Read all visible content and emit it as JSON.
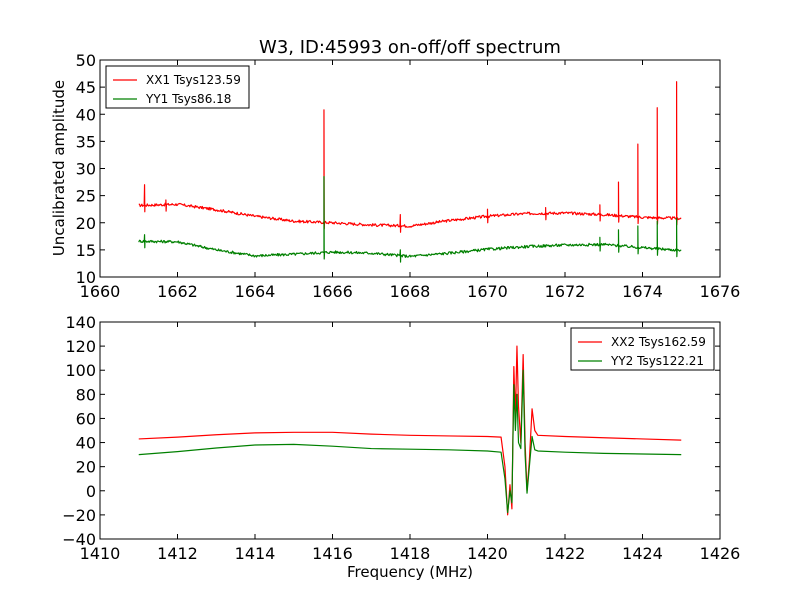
{
  "colors": {
    "series_red": "#ff0000",
    "series_green": "#008000"
  },
  "chart_data": [
    {
      "type": "line",
      "title": "W3, ID:45993 on-off/off spectrum",
      "xlabel": "",
      "ylabel": "Uncalibrated amplitude",
      "xlim": [
        1660,
        1676
      ],
      "ylim": [
        10,
        50
      ],
      "xticks": [
        "1660",
        "1662",
        "1664",
        "1666",
        "1668",
        "1670",
        "1672",
        "1674",
        "1676"
      ],
      "yticks": [
        "10",
        "15",
        "20",
        "25",
        "30",
        "35",
        "40",
        "45",
        "50"
      ],
      "grid": false,
      "legend_position": "top-left",
      "series": [
        {
          "name": "XX1 Tsys123.59",
          "color": "#ff0000",
          "baseline": [
            [
              1661.0,
              23.2
            ],
            [
              1662.0,
              23.4
            ],
            [
              1663.0,
              22.4
            ],
            [
              1664.0,
              21.2
            ],
            [
              1665.0,
              20.3
            ],
            [
              1666.0,
              20.0
            ],
            [
              1667.0,
              19.6
            ],
            [
              1668.0,
              19.4
            ],
            [
              1669.0,
              20.4
            ],
            [
              1670.0,
              21.2
            ],
            [
              1671.0,
              21.7
            ],
            [
              1672.0,
              21.8
            ],
            [
              1673.0,
              21.5
            ],
            [
              1674.0,
              21.0
            ],
            [
              1675.0,
              20.8
            ]
          ],
          "spikes": [
            [
              1661.15,
              27.0
            ],
            [
              1661.7,
              24.2
            ],
            [
              1665.78,
              40.8
            ],
            [
              1667.75,
              21.5
            ],
            [
              1670.0,
              22.5
            ],
            [
              1671.5,
              22.8
            ],
            [
              1672.9,
              23.3
            ],
            [
              1673.38,
              27.5
            ],
            [
              1673.88,
              34.5
            ],
            [
              1674.38,
              41.2
            ],
            [
              1674.88,
              46.0
            ]
          ]
        },
        {
          "name": "YY1 Tsys86.18",
          "color": "#008000",
          "baseline": [
            [
              1661.0,
              16.6
            ],
            [
              1662.0,
              16.5
            ],
            [
              1663.0,
              15.0
            ],
            [
              1664.0,
              13.9
            ],
            [
              1665.0,
              14.2
            ],
            [
              1666.0,
              14.6
            ],
            [
              1667.0,
              14.4
            ],
            [
              1668.0,
              13.8
            ],
            [
              1669.0,
              14.4
            ],
            [
              1670.0,
              15.1
            ],
            [
              1671.0,
              15.6
            ],
            [
              1672.0,
              15.9
            ],
            [
              1673.0,
              16.0
            ],
            [
              1674.0,
              15.4
            ],
            [
              1675.0,
              14.9
            ]
          ],
          "spikes": [
            [
              1661.15,
              17.8
            ],
            [
              1665.78,
              28.5
            ],
            [
              1667.75,
              15.0
            ],
            [
              1672.9,
              17.3
            ],
            [
              1673.38,
              18.7
            ],
            [
              1673.88,
              19.4
            ],
            [
              1674.38,
              20.3
            ],
            [
              1674.88,
              20.8
            ]
          ]
        }
      ]
    },
    {
      "type": "line",
      "title": "",
      "xlabel": "Frequency (MHz)",
      "ylabel": "",
      "xlim": [
        1410,
        1426
      ],
      "ylim": [
        -40,
        140
      ],
      "xticks": [
        "1410",
        "1412",
        "1414",
        "1416",
        "1418",
        "1420",
        "1422",
        "1424",
        "1426"
      ],
      "yticks": [
        "−40",
        "−20",
        "0",
        "20",
        "40",
        "60",
        "80",
        "100",
        "120",
        "140"
      ],
      "grid": false,
      "legend_position": "top-right",
      "series": [
        {
          "name": "XX2 Tsys162.59",
          "color": "#ff0000",
          "points": [
            [
              1411.0,
              43.0
            ],
            [
              1412.0,
              44.5
            ],
            [
              1413.0,
              46.5
            ],
            [
              1414.0,
              48.0
            ],
            [
              1415.0,
              48.5
            ],
            [
              1416.0,
              48.5
            ],
            [
              1417.0,
              47.0
            ],
            [
              1418.0,
              46.0
            ],
            [
              1419.0,
              45.5
            ],
            [
              1420.0,
              45.0
            ],
            [
              1420.35,
              44.5
            ],
            [
              1420.45,
              20.0
            ],
            [
              1420.52,
              -20.0
            ],
            [
              1420.58,
              5.0
            ],
            [
              1420.63,
              -15.0
            ],
            [
              1420.68,
              103.0
            ],
            [
              1420.72,
              60.0
            ],
            [
              1420.76,
              120.0
            ],
            [
              1420.8,
              70.0
            ],
            [
              1420.86,
              40.0
            ],
            [
              1420.92,
              113.0
            ],
            [
              1420.97,
              40.0
            ],
            [
              1421.02,
              0.0
            ],
            [
              1421.08,
              25.0
            ],
            [
              1421.15,
              68.0
            ],
            [
              1421.22,
              50.0
            ],
            [
              1421.3,
              46.0
            ],
            [
              1422.0,
              45.0
            ],
            [
              1423.0,
              44.0
            ],
            [
              1424.0,
              43.0
            ],
            [
              1425.0,
              42.0
            ]
          ]
        },
        {
          "name": "YY2 Tsys122.21",
          "color": "#008000",
          "points": [
            [
              1411.0,
              30.0
            ],
            [
              1412.0,
              32.5
            ],
            [
              1413.0,
              35.5
            ],
            [
              1414.0,
              38.0
            ],
            [
              1415.0,
              38.5
            ],
            [
              1416.0,
              37.0
            ],
            [
              1417.0,
              35.0
            ],
            [
              1418.0,
              34.5
            ],
            [
              1419.0,
              34.0
            ],
            [
              1420.0,
              33.0
            ],
            [
              1420.35,
              32.0
            ],
            [
              1420.45,
              10.0
            ],
            [
              1420.52,
              -18.0
            ],
            [
              1420.58,
              0.0
            ],
            [
              1420.63,
              -10.0
            ],
            [
              1420.68,
              88.0
            ],
            [
              1420.72,
              50.0
            ],
            [
              1420.76,
              80.0
            ],
            [
              1420.8,
              40.0
            ],
            [
              1420.86,
              35.0
            ],
            [
              1420.92,
              100.0
            ],
            [
              1420.97,
              30.0
            ],
            [
              1421.02,
              -2.0
            ],
            [
              1421.08,
              20.0
            ],
            [
              1421.15,
              45.0
            ],
            [
              1421.22,
              34.0
            ],
            [
              1421.3,
              33.0
            ],
            [
              1422.0,
              32.0
            ],
            [
              1423.0,
              31.0
            ],
            [
              1424.0,
              30.5
            ],
            [
              1425.0,
              30.0
            ]
          ]
        }
      ]
    }
  ]
}
